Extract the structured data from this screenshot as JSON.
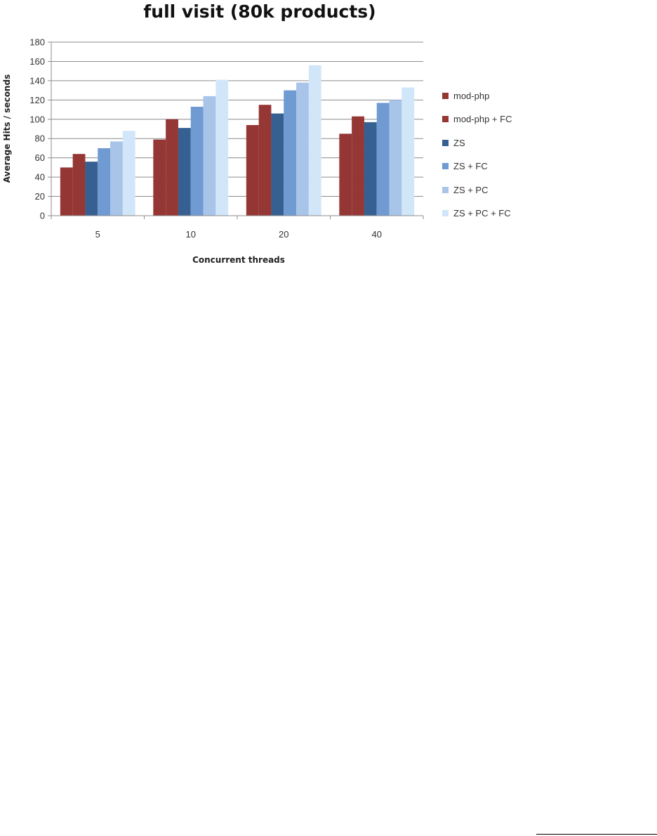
{
  "chart_data": {
    "type": "bar",
    "title": "full visit (80k products)",
    "xlabel": "Concurrent threads",
    "ylabel": "Average Hits / seconds",
    "categories": [
      "5",
      "10",
      "20",
      "40"
    ],
    "ylim": [
      0,
      180
    ],
    "yticks": [
      0,
      20,
      40,
      60,
      80,
      100,
      120,
      140,
      160,
      180
    ],
    "grid": true,
    "legend_position": "right",
    "series": [
      {
        "name": "mod-php",
        "color": "#943634",
        "values": [
          50,
          79,
          94,
          85
        ]
      },
      {
        "name": "mod-php + FC",
        "color": "#953735",
        "values": [
          64,
          100,
          115,
          103
        ]
      },
      {
        "name": "ZS",
        "color": "#376092",
        "values": [
          56,
          91,
          106,
          97
        ]
      },
      {
        "name": "ZS + FC",
        "color": "#6f9ad2",
        "values": [
          70,
          113,
          130,
          117
        ]
      },
      {
        "name": "ZS + PC",
        "color": "#a8c4e8",
        "values": [
          77,
          124,
          138,
          120
        ]
      },
      {
        "name": "ZS + PC + FC",
        "color": "#d2e6fa",
        "values": [
          88,
          141,
          156,
          133
        ]
      }
    ]
  }
}
